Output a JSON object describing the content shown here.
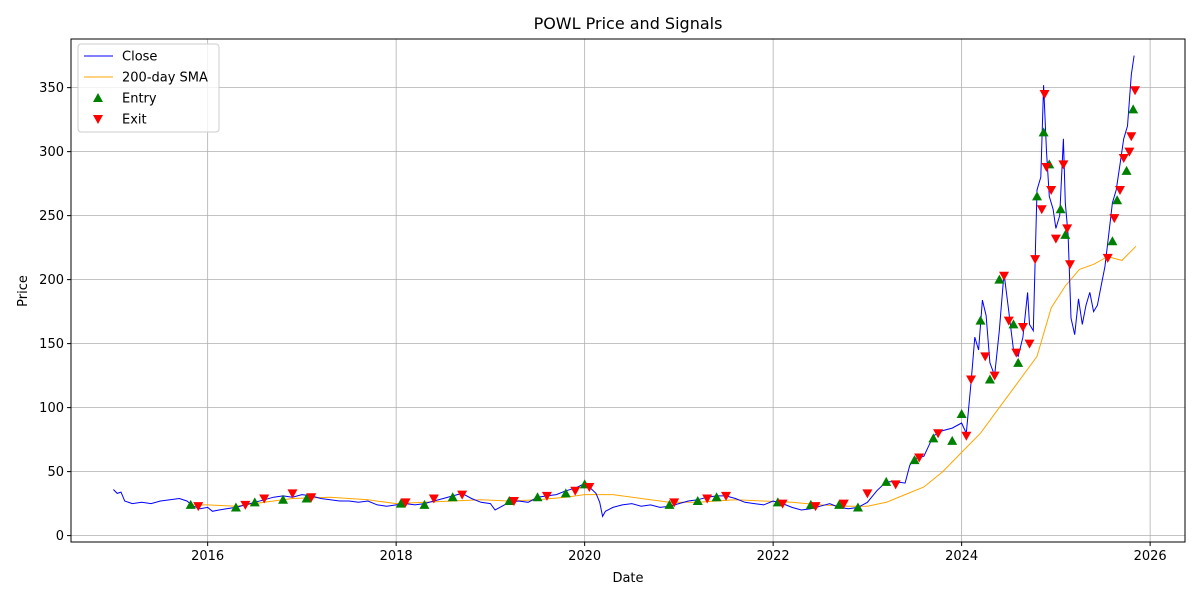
{
  "chart_data": {
    "type": "line",
    "title": "POWL Price and Signals",
    "xlabel": "Date",
    "ylabel": "Price",
    "xlim": [
      2014.55,
      2026.37
    ],
    "ylim": [
      -5,
      388
    ],
    "grid": true,
    "legend_position": "top-left",
    "x_ticks": [
      {
        "value": 2016,
        "label": "2016"
      },
      {
        "value": 2018,
        "label": "2018"
      },
      {
        "value": 2020,
        "label": "2020"
      },
      {
        "value": 2022,
        "label": "2022"
      },
      {
        "value": 2024,
        "label": "2024"
      },
      {
        "value": 2026,
        "label": "2026"
      }
    ],
    "y_ticks": [
      0,
      50,
      100,
      150,
      200,
      250,
      300,
      350
    ],
    "colors": {
      "close": "#0000ff",
      "sma": "#ffa500",
      "entry": "#008000",
      "exit": "#ff0000",
      "grid": "#b0b0b0"
    },
    "legend": [
      {
        "label": "Close",
        "kind": "line",
        "color": "#0000ff"
      },
      {
        "label": "200-day SMA",
        "kind": "line",
        "color": "#ffa500"
      },
      {
        "label": "Entry",
        "kind": "triangle-up",
        "color": "#008000"
      },
      {
        "label": "Exit",
        "kind": "triangle-down",
        "color": "#ff0000"
      }
    ],
    "series": [
      {
        "name": "Close",
        "color": "#0000ff",
        "points": [
          [
            2015.0,
            36
          ],
          [
            2015.04,
            33
          ],
          [
            2015.08,
            34
          ],
          [
            2015.12,
            27
          ],
          [
            2015.2,
            25
          ],
          [
            2015.3,
            26
          ],
          [
            2015.4,
            25
          ],
          [
            2015.5,
            27
          ],
          [
            2015.6,
            28
          ],
          [
            2015.7,
            29
          ],
          [
            2015.78,
            27
          ],
          [
            2015.85,
            23
          ],
          [
            2015.92,
            21
          ],
          [
            2016.0,
            22
          ],
          [
            2016.05,
            19
          ],
          [
            2016.12,
            20
          ],
          [
            2016.2,
            21
          ],
          [
            2016.3,
            22
          ],
          [
            2016.4,
            24
          ],
          [
            2016.5,
            26
          ],
          [
            2016.6,
            28
          ],
          [
            2016.7,
            30
          ],
          [
            2016.8,
            31
          ],
          [
            2016.9,
            30
          ],
          [
            2017.0,
            32
          ],
          [
            2017.1,
            31
          ],
          [
            2017.2,
            29
          ],
          [
            2017.3,
            28
          ],
          [
            2017.4,
            27
          ],
          [
            2017.5,
            27
          ],
          [
            2017.6,
            26
          ],
          [
            2017.7,
            27
          ],
          [
            2017.8,
            24
          ],
          [
            2017.9,
            23
          ],
          [
            2018.0,
            24
          ],
          [
            2018.1,
            25
          ],
          [
            2018.2,
            24
          ],
          [
            2018.3,
            25
          ],
          [
            2018.4,
            27
          ],
          [
            2018.5,
            29
          ],
          [
            2018.6,
            31
          ],
          [
            2018.7,
            33
          ],
          [
            2018.8,
            29
          ],
          [
            2018.9,
            26
          ],
          [
            2019.0,
            25
          ],
          [
            2019.05,
            20
          ],
          [
            2019.1,
            22
          ],
          [
            2019.2,
            26
          ],
          [
            2019.3,
            27
          ],
          [
            2019.4,
            26
          ],
          [
            2019.5,
            30
          ],
          [
            2019.6,
            31
          ],
          [
            2019.7,
            32
          ],
          [
            2019.8,
            35
          ],
          [
            2019.9,
            37
          ],
          [
            2019.98,
            40
          ],
          [
            2020.05,
            38
          ],
          [
            2020.12,
            33
          ],
          [
            2020.16,
            26
          ],
          [
            2020.19,
            15
          ],
          [
            2020.22,
            19
          ],
          [
            2020.3,
            22
          ],
          [
            2020.4,
            24
          ],
          [
            2020.5,
            25
          ],
          [
            2020.6,
            23
          ],
          [
            2020.7,
            24
          ],
          [
            2020.8,
            22
          ],
          [
            2020.9,
            23
          ],
          [
            2021.0,
            25
          ],
          [
            2021.1,
            27
          ],
          [
            2021.2,
            28
          ],
          [
            2021.3,
            30
          ],
          [
            2021.4,
            31
          ],
          [
            2021.5,
            31
          ],
          [
            2021.6,
            29
          ],
          [
            2021.7,
            26
          ],
          [
            2021.8,
            25
          ],
          [
            2021.9,
            24
          ],
          [
            2022.0,
            27
          ],
          [
            2022.1,
            25
          ],
          [
            2022.2,
            22
          ],
          [
            2022.3,
            20
          ],
          [
            2022.4,
            21
          ],
          [
            2022.5,
            23
          ],
          [
            2022.6,
            25
          ],
          [
            2022.7,
            22
          ],
          [
            2022.8,
            21
          ],
          [
            2022.9,
            22
          ],
          [
            2023.0,
            26
          ],
          [
            2023.1,
            35
          ],
          [
            2023.2,
            42
          ],
          [
            2023.3,
            42
          ],
          [
            2023.4,
            41
          ],
          [
            2023.45,
            55
          ],
          [
            2023.5,
            60
          ],
          [
            2023.6,
            62
          ],
          [
            2023.7,
            78
          ],
          [
            2023.8,
            82
          ],
          [
            2023.9,
            84
          ],
          [
            2024.0,
            88
          ],
          [
            2024.05,
            80
          ],
          [
            2024.1,
            120
          ],
          [
            2024.14,
            155
          ],
          [
            2024.18,
            145
          ],
          [
            2024.22,
            184
          ],
          [
            2024.26,
            172
          ],
          [
            2024.3,
            135
          ],
          [
            2024.35,
            125
          ],
          [
            2024.4,
            160
          ],
          [
            2024.45,
            205
          ],
          [
            2024.5,
            175
          ],
          [
            2024.55,
            145
          ],
          [
            2024.6,
            140
          ],
          [
            2024.65,
            155
          ],
          [
            2024.7,
            190
          ],
          [
            2024.72,
            165
          ],
          [
            2024.76,
            160
          ],
          [
            2024.8,
            270
          ],
          [
            2024.84,
            280
          ],
          [
            2024.87,
            352
          ],
          [
            2024.9,
            300
          ],
          [
            2024.93,
            265
          ],
          [
            2024.97,
            255
          ],
          [
            2025.0,
            240
          ],
          [
            2025.04,
            250
          ],
          [
            2025.08,
            310
          ],
          [
            2025.1,
            260
          ],
          [
            2025.13,
            235
          ],
          [
            2025.16,
            170
          ],
          [
            2025.2,
            157
          ],
          [
            2025.24,
            185
          ],
          [
            2025.28,
            165
          ],
          [
            2025.32,
            180
          ],
          [
            2025.36,
            190
          ],
          [
            2025.4,
            175
          ],
          [
            2025.44,
            180
          ],
          [
            2025.48,
            195
          ],
          [
            2025.52,
            210
          ],
          [
            2025.56,
            235
          ],
          [
            2025.6,
            260
          ],
          [
            2025.64,
            270
          ],
          [
            2025.68,
            290
          ],
          [
            2025.72,
            310
          ],
          [
            2025.76,
            320
          ],
          [
            2025.8,
            360
          ],
          [
            2025.83,
            375
          ]
        ]
      },
      {
        "name": "200-day SMA",
        "color": "#ffa500",
        "points": [
          [
            2015.8,
            24
          ],
          [
            2016.0,
            24
          ],
          [
            2016.3,
            23
          ],
          [
            2016.6,
            26
          ],
          [
            2016.9,
            29
          ],
          [
            2017.3,
            30
          ],
          [
            2017.7,
            28
          ],
          [
            2018.0,
            25
          ],
          [
            2018.3,
            26
          ],
          [
            2018.6,
            27
          ],
          [
            2018.9,
            28
          ],
          [
            2019.2,
            27
          ],
          [
            2019.5,
            28
          ],
          [
            2019.8,
            30
          ],
          [
            2020.0,
            32
          ],
          [
            2020.3,
            32
          ],
          [
            2020.6,
            29
          ],
          [
            2020.9,
            26
          ],
          [
            2021.2,
            26
          ],
          [
            2021.6,
            28
          ],
          [
            2021.9,
            27
          ],
          [
            2022.2,
            26
          ],
          [
            2022.5,
            24
          ],
          [
            2022.8,
            23
          ],
          [
            2023.0,
            23
          ],
          [
            2023.2,
            26
          ],
          [
            2023.4,
            32
          ],
          [
            2023.6,
            38
          ],
          [
            2023.8,
            50
          ],
          [
            2024.0,
            65
          ],
          [
            2024.2,
            80
          ],
          [
            2024.4,
            100
          ],
          [
            2024.6,
            120
          ],
          [
            2024.8,
            140
          ],
          [
            2024.95,
            178
          ],
          [
            2025.1,
            195
          ],
          [
            2025.25,
            208
          ],
          [
            2025.4,
            212
          ],
          [
            2025.55,
            218
          ],
          [
            2025.7,
            215
          ],
          [
            2025.85,
            226
          ]
        ]
      }
    ],
    "entries": [
      [
        2015.82,
        24
      ],
      [
        2016.3,
        22
      ],
      [
        2016.5,
        26
      ],
      [
        2016.8,
        28
      ],
      [
        2017.05,
        29
      ],
      [
        2018.05,
        25
      ],
      [
        2018.3,
        24
      ],
      [
        2018.6,
        30
      ],
      [
        2019.2,
        27
      ],
      [
        2019.5,
        30
      ],
      [
        2019.8,
        33
      ],
      [
        2020.0,
        40
      ],
      [
        2020.9,
        24
      ],
      [
        2021.2,
        27
      ],
      [
        2021.4,
        30
      ],
      [
        2022.05,
        26
      ],
      [
        2022.4,
        24
      ],
      [
        2022.7,
        24
      ],
      [
        2022.9,
        22
      ],
      [
        2023.2,
        42
      ],
      [
        2023.5,
        59
      ],
      [
        2023.7,
        76
      ],
      [
        2023.9,
        74
      ],
      [
        2024.0,
        95
      ],
      [
        2024.2,
        168
      ],
      [
        2024.3,
        122
      ],
      [
        2024.4,
        200
      ],
      [
        2024.55,
        165
      ],
      [
        2024.6,
        135
      ],
      [
        2024.8,
        265
      ],
      [
        2024.87,
        315
      ],
      [
        2024.93,
        290
      ],
      [
        2025.05,
        255
      ],
      [
        2025.1,
        235
      ],
      [
        2025.6,
        230
      ],
      [
        2025.65,
        262
      ],
      [
        2025.75,
        285
      ],
      [
        2025.82,
        333
      ]
    ],
    "exits": [
      [
        2015.9,
        23
      ],
      [
        2016.4,
        24
      ],
      [
        2016.6,
        29
      ],
      [
        2016.9,
        33
      ],
      [
        2017.1,
        30
      ],
      [
        2018.1,
        26
      ],
      [
        2018.4,
        29
      ],
      [
        2018.7,
        32
      ],
      [
        2019.25,
        27
      ],
      [
        2019.6,
        31
      ],
      [
        2019.9,
        35
      ],
      [
        2020.05,
        38
      ],
      [
        2020.95,
        26
      ],
      [
        2021.3,
        29
      ],
      [
        2021.5,
        31
      ],
      [
        2022.1,
        25
      ],
      [
        2022.45,
        23
      ],
      [
        2022.75,
        25
      ],
      [
        2023.0,
        33
      ],
      [
        2023.3,
        40
      ],
      [
        2023.55,
        61
      ],
      [
        2023.75,
        80
      ],
      [
        2024.05,
        78
      ],
      [
        2024.1,
        122
      ],
      [
        2024.25,
        140
      ],
      [
        2024.35,
        125
      ],
      [
        2024.45,
        203
      ],
      [
        2024.5,
        168
      ],
      [
        2024.58,
        143
      ],
      [
        2024.65,
        163
      ],
      [
        2024.72,
        150
      ],
      [
        2024.78,
        216
      ],
      [
        2024.85,
        255
      ],
      [
        2024.88,
        345
      ],
      [
        2024.9,
        288
      ],
      [
        2024.95,
        270
      ],
      [
        2025.0,
        232
      ],
      [
        2025.08,
        290
      ],
      [
        2025.12,
        240
      ],
      [
        2025.15,
        212
      ],
      [
        2025.55,
        217
      ],
      [
        2025.62,
        248
      ],
      [
        2025.68,
        270
      ],
      [
        2025.72,
        295
      ],
      [
        2025.78,
        300
      ],
      [
        2025.8,
        312
      ],
      [
        2025.84,
        348
      ]
    ]
  }
}
